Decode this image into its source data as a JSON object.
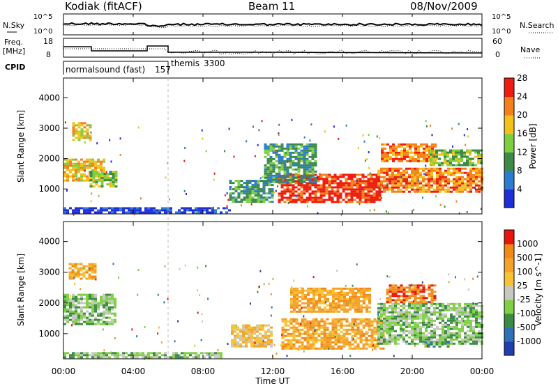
{
  "header": {
    "station": "Kodiak (fitACF)",
    "beam": "Beam 11",
    "date": "08/Nov/2009"
  },
  "noise_panel": {
    "left_label": "N.Sky",
    "right_label": "N.Search",
    "left_ticks": [
      "10^5",
      "10^0"
    ],
    "right_ticks": [
      "10^5",
      "10^0"
    ]
  },
  "freq_panel": {
    "left_label_1": "Freq.",
    "left_label_2": "[MHz]",
    "right_label": "Nave",
    "left_ticks": [
      "18",
      "8"
    ],
    "right_ticks": [
      "60",
      "0"
    ]
  },
  "cpid": {
    "label": "CPID",
    "modes": [
      {
        "name": "normalsound (fast)",
        "id": "157",
        "start_h": 0,
        "end_h": 6
      },
      {
        "name": "themis",
        "id": "3300",
        "start_h": 6,
        "end_h": 24
      }
    ]
  },
  "chart_data": [
    {
      "type": "heatmap",
      "title": "Power",
      "ylabel": "Slant Range [km]",
      "yticks": [
        "1000",
        "2000",
        "3000",
        "4000"
      ],
      "ylim": [
        180,
        4650
      ],
      "xlim": [
        0,
        24
      ],
      "colorbar": {
        "label": "Power [dB]",
        "ticks": [
          "4",
          "8",
          "12",
          "16",
          "20",
          "24",
          "28"
        ],
        "colors": [
          "#1f2ed6",
          "#2c7bd0",
          "#3b8a4a",
          "#7ecf40",
          "#f2c21a",
          "#f57f1a",
          "#ee1c0e"
        ]
      },
      "regions": [
        {
          "x": [
            0.0,
            2.4
          ],
          "y": [
            1300,
            2000
          ],
          "level": 5
        },
        {
          "x": [
            0.5,
            1.5
          ],
          "y": [
            2600,
            3200
          ],
          "level": 5
        },
        {
          "x": [
            1.5,
            3.0
          ],
          "y": [
            1100,
            1600
          ],
          "level": 4
        },
        {
          "x": [
            0.0,
            9.5
          ],
          "y": [
            200,
            400
          ],
          "level": 1
        },
        {
          "x": [
            9.5,
            12.0
          ],
          "y": [
            600,
            1300
          ],
          "level": 3
        },
        {
          "x": [
            12.3,
            18.2
          ],
          "y": [
            600,
            1500
          ],
          "level": 7
        },
        {
          "x": [
            18.0,
            24.0
          ],
          "y": [
            900,
            1700
          ],
          "level": 6
        },
        {
          "x": [
            18.2,
            21.3
          ],
          "y": [
            1900,
            2500
          ],
          "level": 6
        },
        {
          "x": [
            21.0,
            24.0
          ],
          "y": [
            1800,
            2300
          ],
          "level": 4
        },
        {
          "x": [
            11.5,
            14.5
          ],
          "y": [
            1200,
            2500
          ],
          "level": 3
        }
      ]
    },
    {
      "type": "heatmap",
      "title": "Velocity",
      "ylabel": "Slant Range [km]",
      "yticks": [
        "1000",
        "2000",
        "3000",
        "4000"
      ],
      "ylim": [
        180,
        4650
      ],
      "xlim": [
        0,
        24
      ],
      "xlabel": "Time UT",
      "xticks": [
        "00:00",
        "04:00",
        "08:00",
        "12:00",
        "16:00",
        "20:00",
        "00:00"
      ],
      "colorbar": {
        "label": "Velocity [m s^-1]",
        "ticks": [
          "1000",
          "500",
          "100",
          "25",
          "-25",
          "-100",
          "-500",
          "-1000"
        ],
        "colors": [
          "#1f3fb0",
          "#2d72b8",
          "#3d8a45",
          "#7fd044",
          "#c8c8c2",
          "#f7c233",
          "#f5a22a",
          "#ef8a19",
          "#e9140e"
        ]
      },
      "regions": [
        {
          "x": [
            0.0,
            3.0
          ],
          "y": [
            1300,
            2300
          ],
          "level": 4
        },
        {
          "x": [
            0.3,
            1.9
          ],
          "y": [
            2800,
            3300
          ],
          "level": 7
        },
        {
          "x": [
            9.6,
            12.0
          ],
          "y": [
            600,
            1300
          ],
          "level": 6
        },
        {
          "x": [
            12.5,
            18.3
          ],
          "y": [
            500,
            1500
          ],
          "level": 7
        },
        {
          "x": [
            13.0,
            17.5
          ],
          "y": [
            1700,
            2500
          ],
          "level": 7
        },
        {
          "x": [
            18.0,
            24.0
          ],
          "y": [
            700,
            2000
          ],
          "level": 4
        },
        {
          "x": [
            18.5,
            21.3
          ],
          "y": [
            2000,
            2600
          ],
          "level": 8
        },
        {
          "x": [
            20.7,
            22.0
          ],
          "y": [
            550,
            750
          ],
          "level": 3
        },
        {
          "x": [
            0.0,
            9.0
          ],
          "y": [
            200,
            400
          ],
          "level": 4
        }
      ]
    }
  ]
}
